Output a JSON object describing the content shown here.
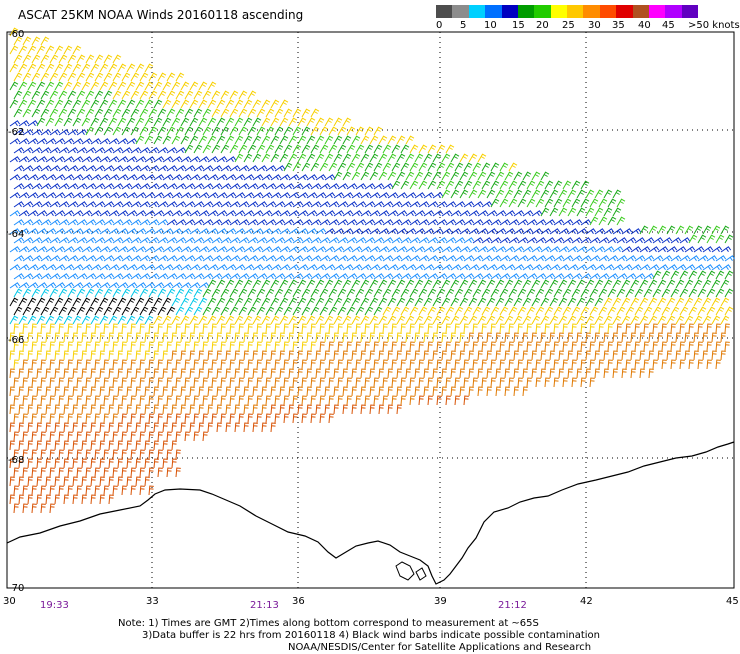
{
  "title": "ASCAT 25KM NOAA Winds 20160118 ascending",
  "legend": {
    "colors": [
      "#4d4d4d",
      "#8c8c8c",
      "#00d0ff",
      "#0070ff",
      "#0000c0",
      "#009c00",
      "#22cc00",
      "#ffff00",
      "#ffc800",
      "#ff8c00",
      "#ff4b00",
      "#e00000",
      "#b05020",
      "#ff00ff",
      "#b000ff",
      "#6000c0"
    ],
    "labels": [
      "0",
      "5",
      "10",
      "15",
      "20",
      "25",
      "30",
      "35",
      "40",
      "45",
      ">50 knots"
    ]
  },
  "map": {
    "lat_labels": [
      "-60",
      "-62",
      "-64",
      "-66",
      "-68",
      "-70"
    ],
    "lon_labels": [
      "30",
      "33",
      "36",
      "39",
      "42",
      "45"
    ],
    "time_labels": [
      "19:33",
      "21:13",
      "21:12"
    ]
  },
  "notes": {
    "line1": "Note: 1) Times are GMT 2)Times along bottom correspond to measurement at ~65S",
    "line2": "3)Data buffer is 22 hrs from 20160118 4) Black wind barbs indicate possible contamination",
    "line3": "NOAA/NESDIS/Center for Satellite Applications and Research"
  },
  "barb_colors": {
    "yellow": "#f8d000",
    "green": "#1caa1c",
    "light_green": "#3ccc20",
    "blue": "#0c32c8",
    "dark_blue": "#0a1a9a",
    "sky_blue": "#1e90ff",
    "cyan": "#00c8e8",
    "black": "#000000",
    "orange": "#e07800",
    "dark_orange": "#d85000",
    "red": "#c81428"
  }
}
